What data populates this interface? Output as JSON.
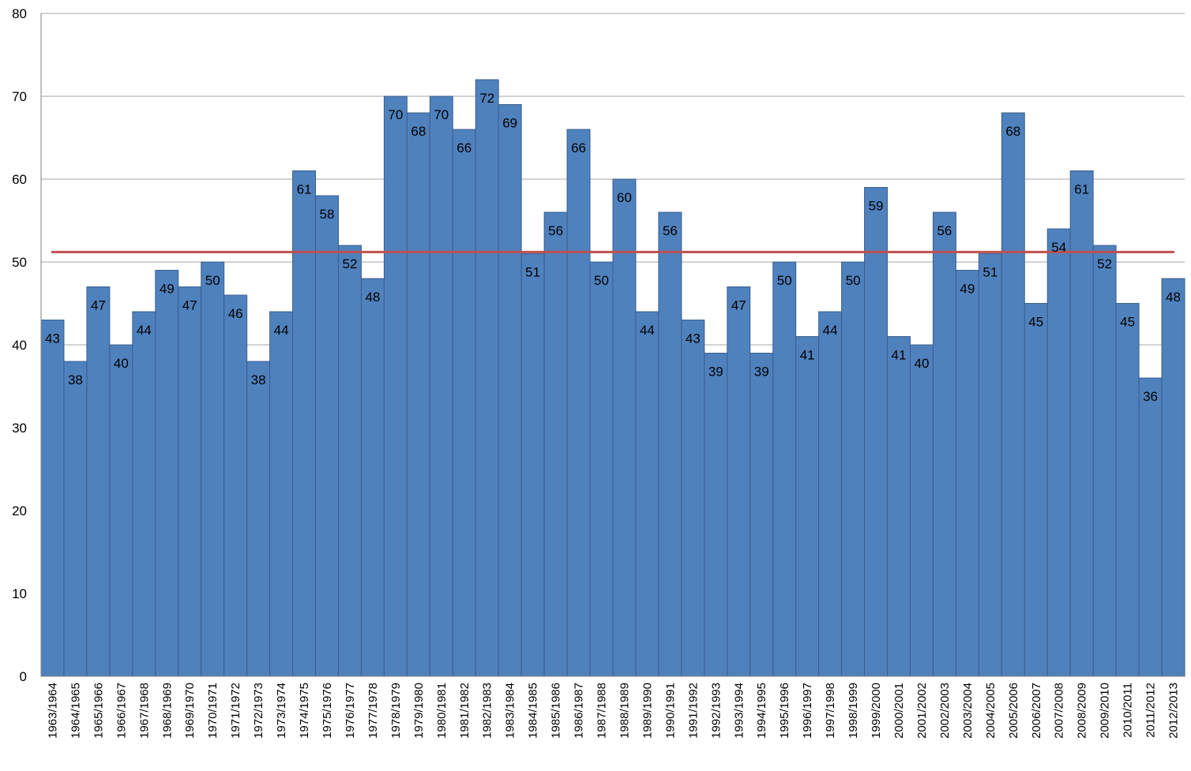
{
  "chart_data": {
    "type": "bar",
    "title": "",
    "xlabel": "",
    "ylabel": "",
    "ylim": [
      0,
      80
    ],
    "yticks": [
      0,
      10,
      20,
      30,
      40,
      50,
      60,
      70,
      80
    ],
    "grid": true,
    "legend": "none",
    "categories": [
      "1963/1964",
      "1964/1965",
      "1965/1966",
      "1966/1967",
      "1967/1968",
      "1968/1969",
      "1969/1970",
      "1970/1971",
      "1971/1972",
      "1972/1973",
      "1973/1974",
      "1974/1975",
      "1975/1976",
      "1976/1977",
      "1977/1978",
      "1978/1979",
      "1979/1980",
      "1980/1981",
      "1981/1982",
      "1982/1983",
      "1983/1984",
      "1984/1985",
      "1985/1986",
      "1986/1987",
      "1987/1988",
      "1988/1989",
      "1989/1990",
      "1990/1991",
      "1991/1992",
      "1992/1993",
      "1993/1994",
      "1994/1995",
      "1995/1996",
      "1996/1997",
      "1997/1998",
      "1998/1999",
      "1999/2000",
      "2000/2001",
      "2001/2002",
      "2002/2003",
      "2003/2004",
      "2004/2005",
      "2005/2006",
      "2006/2007",
      "2007/2008",
      "2008/2009",
      "2009/2010",
      "2010/2011",
      "2011/2012",
      "2012/2013"
    ],
    "series": [
      {
        "values": [
          43,
          38,
          47,
          40,
          44,
          49,
          47,
          50,
          46,
          38,
          44,
          61,
          58,
          52,
          48,
          70,
          68,
          70,
          66,
          72,
          69,
          51,
          56,
          66,
          50,
          60,
          44,
          56,
          43,
          39,
          47,
          39,
          50,
          41,
          44,
          50,
          59,
          41,
          40,
          56,
          49,
          51,
          68,
          45,
          54,
          61,
          52,
          45,
          36,
          48
        ],
        "color": "#4f81bd"
      }
    ],
    "reference_line": {
      "value": 51.2,
      "color": "#c0504d"
    }
  }
}
